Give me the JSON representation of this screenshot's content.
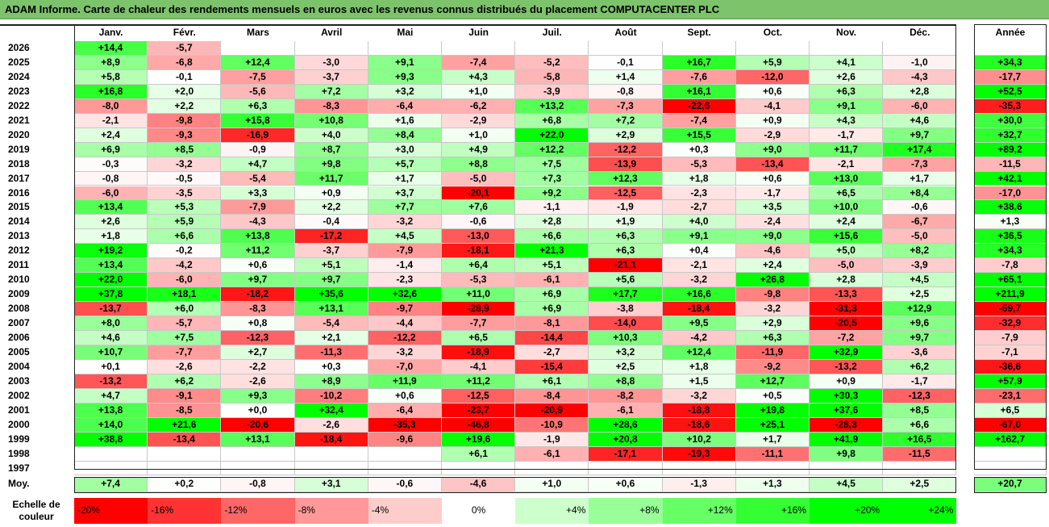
{
  "title": "ADAM Informe. Carte de chaleur des rendements mensuels en euros avec les revenus connus distribués du placement COMPUTACENTER PLC",
  "colors": {
    "title_bg": "#7dc36b",
    "positive_max": "#00ff00",
    "negative_max": "#ff0000",
    "neutral": "#ffffff"
  },
  "chart_data": {
    "type": "heatmap",
    "columns": [
      "Janv.",
      "Févr.",
      "Mars",
      "Avril",
      "Mai",
      "Juin",
      "Juil.",
      "Août",
      "Sept.",
      "Oct.",
      "Nov.",
      "Déc."
    ],
    "year_column": "Année",
    "rows": [
      {
        "year": "2026",
        "months": [
          "+14,4",
          "-5,7",
          "",
          "",
          "",
          "",
          "",
          "",
          "",
          "",
          "",
          ""
        ],
        "annual": ""
      },
      {
        "year": "2025",
        "months": [
          "+8,9",
          "-6,8",
          "+12,4",
          "-3,0",
          "+9,1",
          "-7,4",
          "-5,2",
          "-0,1",
          "+16,7",
          "+5,9",
          "+4,1",
          "-1,0"
        ],
        "annual": "+34,3"
      },
      {
        "year": "2024",
        "months": [
          "+5,8",
          "-0,1",
          "-7,5",
          "-3,7",
          "+9,3",
          "+4,3",
          "-5,8",
          "+1,4",
          "-7,6",
          "-12,0",
          "+2,6",
          "-4,3"
        ],
        "annual": "-17,7"
      },
      {
        "year": "2023",
        "months": [
          "+16,8",
          "+2,0",
          "-5,6",
          "+7,2",
          "+3,2",
          "+1,0",
          "-3,9",
          "-0,8",
          "+16,1",
          "+0,6",
          "+6,3",
          "+2,8"
        ],
        "annual": "+52,5"
      },
      {
        "year": "2022",
        "months": [
          "-8,0",
          "+2,2",
          "+6,3",
          "-8,3",
          "-6,4",
          "-6,2",
          "+13,2",
          "-7,3",
          "-22,6",
          "-4,1",
          "+9,1",
          "-6,0"
        ],
        "annual": "-35,3"
      },
      {
        "year": "2021",
        "months": [
          "-2,1",
          "-9,8",
          "+15,8",
          "+10,8",
          "+1,6",
          "-2,9",
          "+6,8",
          "+7,2",
          "-7,4",
          "+0,9",
          "+4,3",
          "+4,6"
        ],
        "annual": "+30,0"
      },
      {
        "year": "2020",
        "months": [
          "+2,4",
          "-9,3",
          "-16,9",
          "+4,0",
          "+8,4",
          "+1,0",
          "+22,0",
          "+2,9",
          "+15,5",
          "-2,9",
          "-1,7",
          "+9,7"
        ],
        "annual": "+32,7"
      },
      {
        "year": "2019",
        "months": [
          "+6,9",
          "+8,5",
          "-0,9",
          "+8,7",
          "+3,0",
          "+4,9",
          "+12,2",
          "-12,2",
          "+0,3",
          "+9,0",
          "+11,7",
          "+17,4"
        ],
        "annual": "+89,2"
      },
      {
        "year": "2018",
        "months": [
          "-0,3",
          "-3,2",
          "+4,7",
          "+9,8",
          "+5,7",
          "+8,8",
          "+7,5",
          "-13,9",
          "-5,3",
          "-13,4",
          "-2,1",
          "-7,3"
        ],
        "annual": "-11,5"
      },
      {
        "year": "2017",
        "months": [
          "-0,8",
          "-0,5",
          "-5,4",
          "+11,7",
          "+1,7",
          "-5,0",
          "+7,3",
          "+12,3",
          "+1,8",
          "+0,6",
          "+13,0",
          "+1,7"
        ],
        "annual": "+42,1"
      },
      {
        "year": "2016",
        "months": [
          "-6,0",
          "-3,5",
          "+3,3",
          "+0,9",
          "+3,7",
          "-20,1",
          "+9,2",
          "-12,5",
          "-2,3",
          "-1,7",
          "+6,5",
          "+8,4"
        ],
        "annual": "-17,0"
      },
      {
        "year": "2015",
        "months": [
          "+13,4",
          "+5,3",
          "-7,9",
          "+2,2",
          "+7,7",
          "+7,6",
          "-1,1",
          "-1,9",
          "-2,7",
          "+3,5",
          "+10,0",
          "-0,6"
        ],
        "annual": "+38,6"
      },
      {
        "year": "2014",
        "months": [
          "+2,6",
          "+5,9",
          "-4,3",
          "-0,4",
          "-3,2",
          "-0,6",
          "+2,8",
          "+1,9",
          "+4,0",
          "-2,4",
          "+2,4",
          "-6,7"
        ],
        "annual": "+1,3"
      },
      {
        "year": "2013",
        "months": [
          "+1,8",
          "+6,6",
          "+13,8",
          "-17,2",
          "+4,5",
          "-13,0",
          "+6,6",
          "+6,3",
          "+9,1",
          "+9,0",
          "+15,6",
          "-5,0"
        ],
        "annual": "+36,5"
      },
      {
        "year": "2012",
        "months": [
          "+19,2",
          "-0,2",
          "+11,2",
          "-3,7",
          "-7,9",
          "-18,1",
          "+21,3",
          "+6,3",
          "+0,4",
          "-4,6",
          "+5,0",
          "+8,2"
        ],
        "annual": "+34,3"
      },
      {
        "year": "2011",
        "months": [
          "+13,4",
          "-4,2",
          "+0,6",
          "+5,1",
          "-1,4",
          "+6,4",
          "+5,1",
          "-21,1",
          "-2,1",
          "+2,4",
          "-5,0",
          "-3,9"
        ],
        "annual": "-7,8"
      },
      {
        "year": "2010",
        "months": [
          "+22,0",
          "-6,0",
          "+9,7",
          "+9,7",
          "-2,3",
          "-5,3",
          "-6,1",
          "+5,6",
          "-3,2",
          "+26,8",
          "+2,8",
          "+4,5"
        ],
        "annual": "+65,1"
      },
      {
        "year": "2009",
        "months": [
          "+37,8",
          "+18,1",
          "-18,2",
          "+35,6",
          "+32,6",
          "+11,0",
          "+6,9",
          "+17,7",
          "+16,6",
          "-9,8",
          "-13,3",
          "+2,5"
        ],
        "annual": "+211,9"
      },
      {
        "year": "2008",
        "months": [
          "-13,7",
          "+6,0",
          "-8,3",
          "+13,1",
          "-9,7",
          "-28,9",
          "+6,9",
          "-3,8",
          "-18,4",
          "-3,2",
          "-31,3",
          "+12,9"
        ],
        "annual": "-59,7"
      },
      {
        "year": "2007",
        "months": [
          "+8,0",
          "-5,7",
          "+0,8",
          "-5,4",
          "-4,4",
          "-7,7",
          "-8,1",
          "-14,0",
          "+9,5",
          "+2,9",
          "-20,5",
          "+9,6"
        ],
        "annual": "-32,9"
      },
      {
        "year": "2006",
        "months": [
          "+4,6",
          "+7,5",
          "-12,3",
          "+2,1",
          "-12,2",
          "+6,5",
          "-14,4",
          "+10,3",
          "-4,2",
          "+6,3",
          "-7,2",
          "+9,7"
        ],
        "annual": "-7,9"
      },
      {
        "year": "2005",
        "months": [
          "+10,7",
          "-7,7",
          "+2,7",
          "-11,3",
          "-3,2",
          "-18,9",
          "-2,7",
          "+3,2",
          "+12,4",
          "-11,9",
          "+32,9",
          "-3,6"
        ],
        "annual": "-7,1"
      },
      {
        "year": "2004",
        "months": [
          "+0,1",
          "-2,6",
          "-2,2",
          "+0,3",
          "-7,0",
          "-4,1",
          "-15,4",
          "+2,5",
          "+1,8",
          "-9,2",
          "-13,2",
          "+6,2"
        ],
        "annual": "-36,6"
      },
      {
        "year": "2003",
        "months": [
          "-13,2",
          "+6,2",
          "-2,6",
          "+8,9",
          "+11,9",
          "+11,2",
          "+6,1",
          "+8,8",
          "+1,5",
          "+12,7",
          "+0,9",
          "-1,7"
        ],
        "annual": "+57,9"
      },
      {
        "year": "2002",
        "months": [
          "+4,7",
          "-9,1",
          "+9,3",
          "-10,2",
          "+0,6",
          "-12,5",
          "-8,4",
          "-8,2",
          "-3,2",
          "+0,5",
          "+30,3",
          "-12,3"
        ],
        "annual": "-23,1"
      },
      {
        "year": "2001",
        "months": [
          "+13,8",
          "-8,5",
          "+0,0",
          "+32,4",
          "-6,4",
          "-23,7",
          "-20,9",
          "-6,1",
          "-18,8",
          "+19,8",
          "+37,6",
          "+8,5"
        ],
        "annual": "+6,5"
      },
      {
        "year": "2000",
        "months": [
          "+14,0",
          "+21,6",
          "-20,6",
          "-2,6",
          "-35,3",
          "-46,8",
          "-10,9",
          "+28,6",
          "-18,6",
          "+25,1",
          "-28,3",
          "+6,6"
        ],
        "annual": "-67,0"
      },
      {
        "year": "1999",
        "months": [
          "+38,8",
          "-13,4",
          "+13,1",
          "-18,4",
          "-9,6",
          "+19,6",
          "-1,9",
          "+20,8",
          "+10,2",
          "+1,7",
          "+41,9",
          "+16,5"
        ],
        "annual": "+162,7"
      },
      {
        "year": "1998",
        "months": [
          "",
          "",
          "",
          "",
          "",
          "+6,1",
          "-6,1",
          "-17,1",
          "-19,3",
          "-11,1",
          "+9,8",
          "-11,5"
        ],
        "annual": ""
      },
      {
        "year": "1997",
        "months": [
          "",
          "",
          "",
          "",
          "",
          "",
          "",
          "",
          "",
          "",
          "",
          ""
        ],
        "annual": ""
      }
    ],
    "average": {
      "label": "Moy.",
      "months": [
        "+7,4",
        "+0,2",
        "-0,8",
        "+3,1",
        "-0,6",
        "-4,6",
        "+1,0",
        "+0,6",
        "-1,3",
        "+1,3",
        "+4,5",
        "+2,5"
      ],
      "annual": "+20,7"
    },
    "scale": {
      "label": "Echelle de couleur",
      "steps": [
        {
          "text": "-20%",
          "value": -20
        },
        {
          "text": "-16%",
          "value": -16
        },
        {
          "text": "-12%",
          "value": -12
        },
        {
          "text": "-8%",
          "value": -8
        },
        {
          "text": "-4%",
          "value": -4
        },
        {
          "text": "0%",
          "value": 0
        },
        {
          "text": "+4%",
          "value": 4
        },
        {
          "text": "+8%",
          "value": 8
        },
        {
          "text": "+12%",
          "value": 12
        },
        {
          "text": "+16%",
          "value": 16
        },
        {
          "text": "+20%",
          "value": 20
        },
        {
          "text": "+24%",
          "value": 24
        }
      ]
    }
  }
}
